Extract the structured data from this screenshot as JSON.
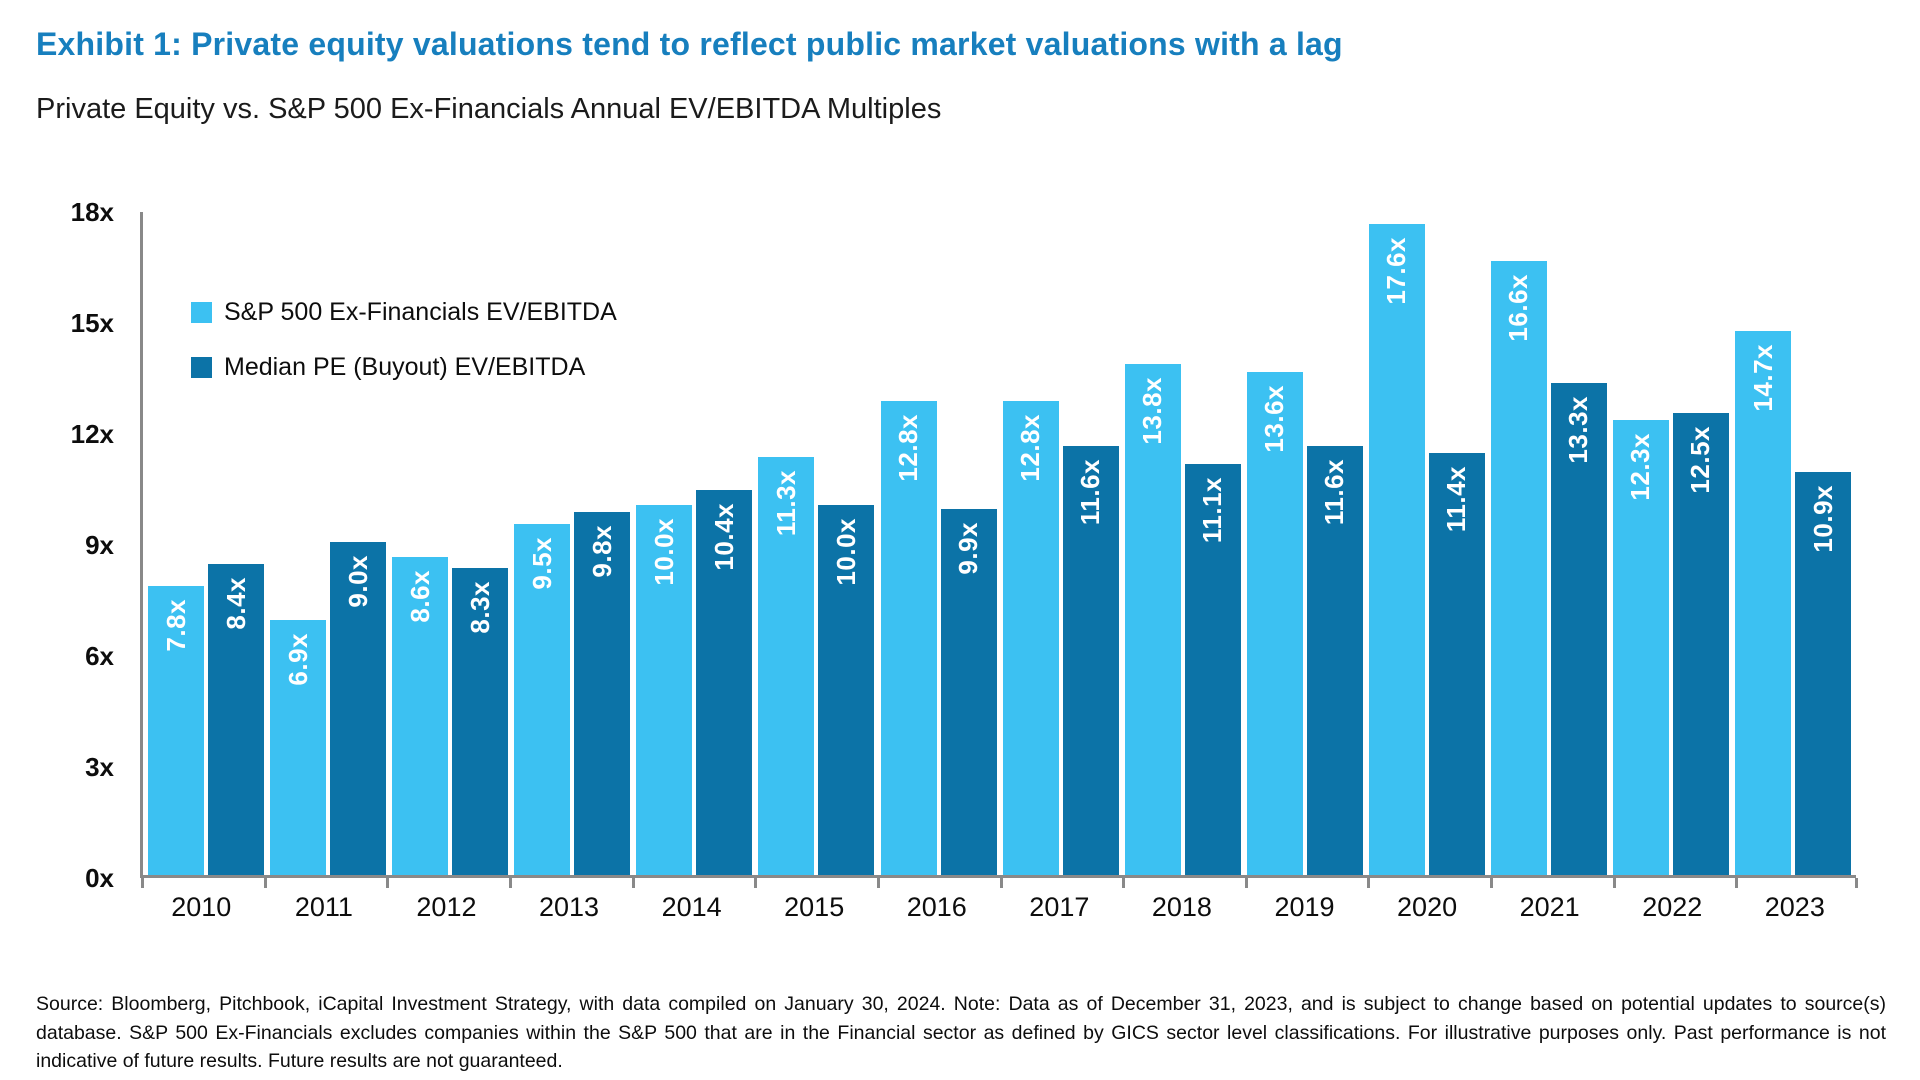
{
  "title": "Exhibit 1: Private equity valuations tend to reflect public market valuations with a lag",
  "subtitle": "Private Equity vs. S&P 500 Ex-Financials Annual EV/EBITDA Multiples",
  "colors": {
    "title_blue": "#177fbe",
    "light_blue": "#3cc1f2",
    "dark_blue": "#0c73a7",
    "axis_grey": "#898989"
  },
  "legend": [
    {
      "label": "S&P 500 Ex-Financials EV/EBITDA",
      "color": "#3cc1f2"
    },
    {
      "label": "Median PE (Buyout) EV/EBITDA",
      "color": "#0c73a7"
    }
  ],
  "chart_data": {
    "type": "bar",
    "categories": [
      "2010",
      "2011",
      "2012",
      "2013",
      "2014",
      "2015",
      "2016",
      "2017",
      "2018",
      "2019",
      "2020",
      "2021",
      "2022",
      "2023"
    ],
    "series": [
      {
        "name": "S&P 500 Ex-Financials EV/EBITDA",
        "color": "#3cc1f2",
        "values": [
          7.8,
          6.9,
          8.6,
          9.5,
          10.0,
          11.3,
          12.8,
          12.8,
          13.8,
          13.6,
          17.6,
          16.6,
          12.3,
          14.7
        ],
        "labels": [
          "7.8x",
          "6.9x",
          "8.6x",
          "9.5x",
          "10.0x",
          "11.3x",
          "12.8x",
          "12.8x",
          "13.8x",
          "13.6x",
          "17.6x",
          "16.6x",
          "12.3x",
          "14.7x"
        ]
      },
      {
        "name": "Median PE (Buyout) EV/EBITDA",
        "color": "#0c73a7",
        "values": [
          8.4,
          9.0,
          8.3,
          9.8,
          10.4,
          10.0,
          9.9,
          11.6,
          11.1,
          11.6,
          11.4,
          13.3,
          12.5,
          10.9
        ],
        "labels": [
          "8.4x",
          "9.0x",
          "8.3x",
          "9.8x",
          "10.4x",
          "10.0x",
          "9.9x",
          "11.6x",
          "11.1x",
          "11.6x",
          "11.4x",
          "13.3x",
          "12.5x",
          "10.9x"
        ]
      }
    ],
    "title": "Private Equity vs. S&P 500 Ex-Financials Annual EV/EBITDA Multiples",
    "xlabel": "",
    "ylabel": "",
    "ylim": [
      0,
      18
    ],
    "yticks": [
      0,
      3,
      6,
      9,
      12,
      15,
      18
    ],
    "ytick_labels": [
      "0x",
      "3x",
      "6x",
      "9x",
      "12x",
      "15x",
      "18x"
    ],
    "grid": false,
    "legend_position": "upper-left-inside",
    "value_label_style": "white, bold, rotated 90deg, inside top of bar"
  },
  "source_note": "Source: Bloomberg, Pitchbook, iCapital Investment Strategy, with data compiled on January 30, 2024. Note: Data as of December 31, 2023, and is subject to change based on potential updates to source(s) database. S&P 500 Ex-Financials excludes companies within the S&P 500 that are in the Financial sector as defined by GICS sector level classifications. For illustrative purposes only. Past performance is not indicative of future results. Future results are not guaranteed."
}
